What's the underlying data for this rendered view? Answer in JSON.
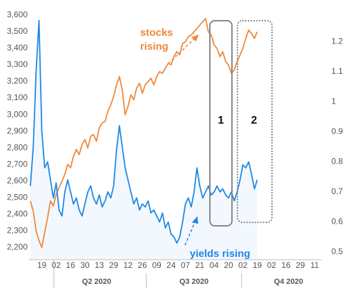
{
  "chart_data": {
    "type": "line",
    "categories": [
      null,
      null,
      null,
      null,
      "19",
      null,
      null,
      null,
      null,
      "02",
      null,
      null,
      null,
      null,
      "16",
      null,
      null,
      null,
      null,
      "30",
      null,
      null,
      null,
      null,
      "13",
      null,
      null,
      null,
      null,
      "29",
      null,
      null,
      null,
      null,
      "12",
      null,
      null,
      null,
      null,
      "26",
      null,
      null,
      null,
      null,
      "09",
      null,
      null,
      null,
      null,
      "24",
      null,
      null,
      null,
      null,
      "07",
      null,
      null,
      null,
      null,
      "21",
      null,
      null,
      null,
      null,
      "04",
      null,
      null,
      null,
      null,
      "20",
      null,
      null,
      null,
      null,
      "02",
      null,
      null,
      null,
      null,
      "19",
      null,
      null,
      null,
      null,
      "02",
      null,
      null,
      null,
      null,
      "16",
      null,
      null,
      null,
      null,
      "29",
      null,
      null,
      null,
      null,
      "11",
      null,
      null
    ],
    "quarters": [
      "Q2 2020",
      "Q3 2020",
      "Q4 2020"
    ],
    "series": [
      {
        "name": "stocks",
        "color": "#f0873a",
        "values": [
          2480,
          2420,
          2300,
          2240,
          2200,
          2290,
          2380,
          2480,
          2450,
          2520,
          2560,
          2600,
          2640,
          2700,
          2680,
          2750,
          2790,
          2760,
          2820,
          2850,
          2800,
          2870,
          2880,
          2840,
          2920,
          2950,
          2960,
          3020,
          3060,
          3110,
          3180,
          3230,
          3150,
          3000,
          3050,
          3120,
          3090,
          3160,
          3190,
          3130,
          3180,
          3200,
          3220,
          3180,
          3230,
          3260,
          3250,
          3280,
          3310,
          3300,
          3350,
          3380,
          3360,
          3430,
          3440,
          3470,
          3480,
          3500,
          3520,
          3540,
          3560,
          3580,
          3500,
          3480,
          3420,
          3400,
          3350,
          3380,
          3320,
          3300,
          3250,
          3270,
          3320,
          3360,
          3400,
          3460,
          3510,
          3490,
          3460,
          3500,
          null,
          null,
          null,
          null,
          null,
          null,
          null,
          null,
          null,
          null,
          null,
          null,
          null,
          null,
          null,
          null,
          null,
          null,
          null,
          null,
          null,
          null
        ]
      },
      {
        "name": "yields",
        "color": "#1e87e5",
        "axis": "y2",
        "values": [
          0.72,
          0.85,
          1.1,
          1.27,
          0.9,
          0.78,
          0.8,
          0.74,
          0.68,
          0.73,
          0.64,
          0.62,
          0.7,
          0.74,
          0.7,
          0.66,
          0.68,
          0.64,
          0.62,
          0.66,
          0.7,
          0.72,
          0.68,
          0.66,
          0.69,
          0.65,
          0.67,
          0.7,
          0.68,
          0.72,
          0.84,
          0.92,
          0.85,
          0.78,
          0.74,
          0.7,
          0.66,
          0.68,
          0.64,
          0.66,
          0.65,
          0.67,
          0.63,
          0.64,
          0.62,
          0.6,
          0.63,
          0.58,
          0.6,
          0.56,
          0.55,
          0.53,
          0.55,
          0.6,
          0.66,
          0.68,
          0.65,
          0.7,
          0.78,
          0.72,
          0.68,
          0.7,
          0.72,
          0.69,
          0.7,
          0.72,
          0.7,
          0.71,
          0.69,
          0.68,
          0.7,
          0.67,
          0.7,
          0.74,
          0.79,
          0.78,
          0.8,
          0.76,
          0.71,
          0.74,
          null,
          null,
          null,
          null,
          null,
          null,
          null,
          null,
          null,
          null,
          null,
          null,
          null,
          null,
          null,
          null,
          null,
          null,
          null,
          null,
          null,
          null
        ]
      }
    ],
    "ylim": [
      2130,
      3650
    ],
    "yticks": [
      {
        "value": 2200,
        "label": "2,200"
      },
      {
        "value": 2300,
        "label": "2,300"
      },
      {
        "value": 2400,
        "label": "2,400"
      },
      {
        "value": 2500,
        "label": "2,500"
      },
      {
        "value": 2600,
        "label": "2,600"
      },
      {
        "value": 2700,
        "label": "2,700"
      },
      {
        "value": 2800,
        "label": "2,800"
      },
      {
        "value": 2900,
        "label": "2,900"
      },
      {
        "value": 3000,
        "label": "3,000"
      },
      {
        "value": 3100,
        "label": "3,100"
      },
      {
        "value": 3200,
        "label": "3,200"
      },
      {
        "value": 3300,
        "label": "3,300"
      },
      {
        "value": 3400,
        "label": "3,400"
      },
      {
        "value": 3500,
        "label": "3,500"
      },
      {
        "value": 3600,
        "label": "3,600"
      }
    ],
    "y2lim": [
      0.477,
      1.315
    ],
    "y2ticks": [
      0.5,
      0.6,
      0.7,
      0.8,
      0.9,
      1,
      1.1,
      1.2
    ],
    "annotations": {
      "stocks": [
        "stocks",
        "rising"
      ],
      "yields": "yields rising",
      "box1": "1",
      "box2": "2"
    }
  }
}
